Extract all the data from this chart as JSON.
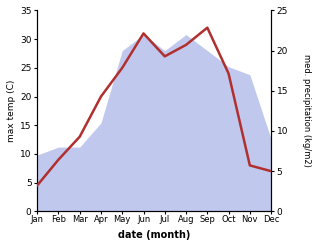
{
  "months": [
    "Jan",
    "Feb",
    "Mar",
    "Apr",
    "May",
    "Jun",
    "Jul",
    "Aug",
    "Sep",
    "Oct",
    "Nov",
    "Dec"
  ],
  "temperature": [
    4.5,
    9.0,
    13.0,
    20.0,
    25.0,
    31.0,
    27.0,
    29.0,
    32.0,
    24.0,
    8.0,
    7.0
  ],
  "precipitation": [
    7,
    8,
    8,
    11,
    20,
    22,
    20,
    22,
    20,
    18,
    17,
    9
  ],
  "temp_color": "#b03030",
  "precip_color": "#c0c8ee",
  "temp_ylim": [
    0,
    35
  ],
  "precip_ylim": [
    0,
    25
  ],
  "temp_yticks": [
    0,
    5,
    10,
    15,
    20,
    25,
    30,
    35
  ],
  "precip_yticks": [
    0,
    5,
    10,
    15,
    20,
    25
  ],
  "ylabel_left": "max temp (C)",
  "ylabel_right": "med. precipitation (kg/m2)",
  "xlabel": "date (month)",
  "background_color": "#ffffff"
}
